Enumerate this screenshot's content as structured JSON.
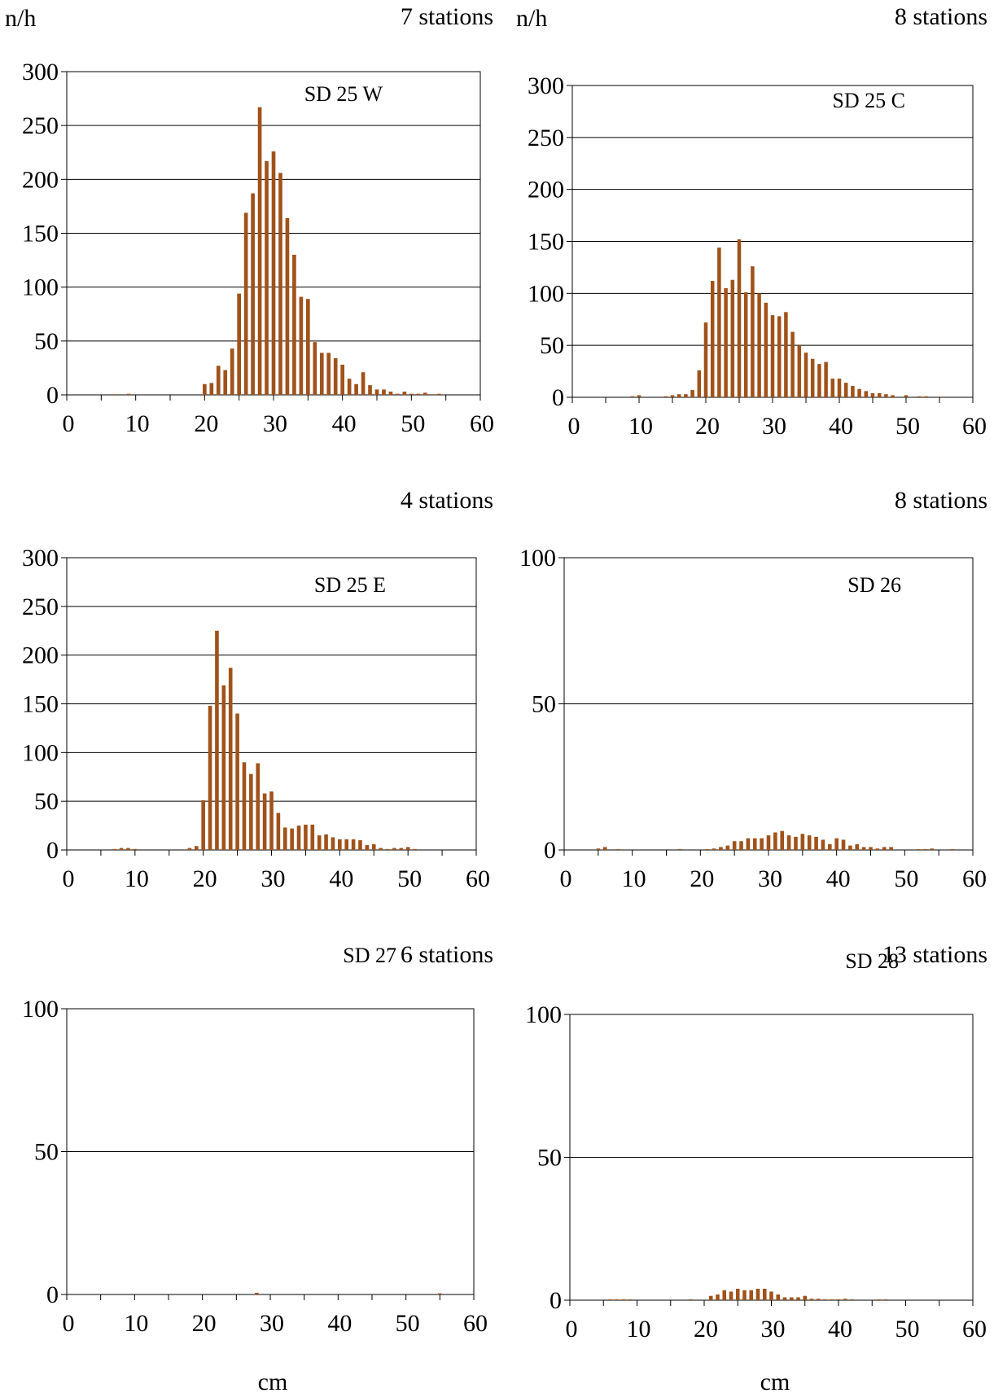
{
  "chart_data": [
    {
      "type": "bar",
      "title": "SD 25 W",
      "stations_label": "7 stations",
      "ylabel": "n/h",
      "xlabel": "",
      "ylim": [
        0,
        300
      ],
      "yticks": [
        0,
        50,
        100,
        150,
        200,
        250,
        300
      ],
      "xlim": [
        0,
        60
      ],
      "xticks": [
        0,
        10,
        20,
        30,
        40,
        50,
        60
      ],
      "grid": true,
      "bar_color": "#A0521A",
      "x": [
        7,
        9,
        20,
        21,
        22,
        23,
        24,
        25,
        26,
        27,
        28,
        29,
        30,
        31,
        32,
        33,
        34,
        35,
        36,
        37,
        38,
        39,
        40,
        41,
        42,
        43,
        44,
        45,
        46,
        47,
        48,
        49,
        50,
        51,
        52,
        53,
        54
      ],
      "values": [
        0.5,
        1,
        10,
        11,
        27,
        23,
        43,
        94,
        169,
        187,
        267,
        217,
        226,
        206,
        164,
        130,
        91,
        89,
        49,
        39,
        39,
        34,
        28,
        15,
        10,
        21,
        9,
        5,
        5,
        3,
        1,
        3,
        1,
        1,
        2,
        0.5,
        1
      ]
    },
    {
      "type": "bar",
      "title": "SD 25 C",
      "stations_label": "8 stations",
      "ylabel": "n/h",
      "xlabel": "",
      "ylim": [
        0,
        300
      ],
      "yticks": [
        0,
        50,
        100,
        150,
        200,
        250,
        300
      ],
      "xlim": [
        0,
        60
      ],
      "xticks": [
        0,
        10,
        20,
        30,
        40,
        50,
        60
      ],
      "grid": true,
      "bar_color": "#A0521A",
      "x": [
        9,
        10,
        14,
        15,
        16,
        17,
        18,
        19,
        20,
        21,
        22,
        23,
        24,
        25,
        26,
        27,
        28,
        29,
        30,
        31,
        32,
        33,
        34,
        35,
        36,
        37,
        38,
        39,
        40,
        41,
        42,
        43,
        44,
        45,
        46,
        47,
        48,
        50,
        52,
        53,
        55
      ],
      "values": [
        1,
        2,
        1,
        2,
        3,
        3,
        7,
        26,
        72,
        112,
        144,
        105,
        113,
        152,
        101,
        126,
        100,
        91,
        79,
        78,
        82,
        63,
        50,
        43,
        37,
        32,
        34,
        18,
        18,
        14,
        11,
        8,
        6,
        4,
        4,
        3,
        2,
        2,
        1,
        1,
        0.5
      ]
    },
    {
      "type": "bar",
      "title": "SD 25 E",
      "stations_label": "4 stations",
      "ylabel": "",
      "xlabel": "",
      "ylim": [
        0,
        300
      ],
      "yticks": [
        0,
        50,
        100,
        150,
        200,
        250,
        300
      ],
      "xlim": [
        0,
        60
      ],
      "xticks": [
        0,
        10,
        20,
        30,
        40,
        50,
        60
      ],
      "grid": true,
      "bar_color": "#A0521A",
      "x": [
        7,
        8,
        9,
        10,
        18,
        19,
        20,
        21,
        22,
        23,
        24,
        25,
        26,
        27,
        28,
        29,
        30,
        31,
        32,
        33,
        34,
        35,
        36,
        37,
        38,
        39,
        40,
        41,
        42,
        43,
        44,
        45,
        46,
        47,
        48,
        49,
        50,
        51
      ],
      "values": [
        1,
        2,
        2,
        1,
        2,
        4,
        51,
        148,
        225,
        169,
        187,
        140,
        90,
        78,
        89,
        58,
        60,
        38,
        23,
        22,
        25,
        26,
        26,
        15,
        16,
        13,
        11,
        11,
        11,
        10,
        5,
        6,
        2,
        1,
        2,
        2,
        3,
        1
      ]
    },
    {
      "type": "bar",
      "title": "SD 26",
      "stations_label": "8 stations",
      "ylabel": "",
      "xlabel": "",
      "ylim": [
        0,
        100
      ],
      "yticks": [
        0,
        50,
        100
      ],
      "xlim": [
        0,
        60
      ],
      "xticks": [
        0,
        10,
        20,
        30,
        40,
        50,
        60
      ],
      "grid": true,
      "bar_color": "#A0521A",
      "x": [
        5,
        6,
        8,
        17,
        21,
        22,
        23,
        24,
        25,
        26,
        27,
        28,
        29,
        30,
        31,
        32,
        33,
        34,
        35,
        36,
        37,
        38,
        39,
        40,
        41,
        42,
        43,
        44,
        45,
        46,
        47,
        48,
        52,
        53,
        54,
        57
      ],
      "values": [
        0.5,
        1,
        0.3,
        0.3,
        0.3,
        0.5,
        1,
        1.5,
        3,
        3,
        4,
        4,
        4,
        5,
        6,
        6.5,
        5,
        4.5,
        5.5,
        5,
        4.5,
        3.5,
        2,
        4,
        3.5,
        1.5,
        2,
        1,
        1,
        0.5,
        1,
        1,
        0.3,
        0.3,
        0.5,
        0.3
      ]
    },
    {
      "type": "bar",
      "title": "SD 27",
      "stations_label": "6 stations",
      "ylabel": "",
      "xlabel": "cm",
      "ylim": [
        0,
        100
      ],
      "yticks": [
        0,
        50,
        100
      ],
      "xlim": [
        0,
        60
      ],
      "xticks": [
        0,
        10,
        20,
        30,
        40,
        50,
        60
      ],
      "grid": true,
      "bar_color": "#A0521A",
      "x": [
        28,
        55
      ],
      "values": [
        0.6,
        0.4
      ]
    },
    {
      "type": "bar",
      "title": "SD 28",
      "stations_label": "13 stations",
      "ylabel": "",
      "xlabel": "cm",
      "ylim": [
        0,
        100
      ],
      "yticks": [
        0,
        50,
        100
      ],
      "xlim": [
        0,
        60
      ],
      "xticks": [
        0,
        10,
        20,
        30,
        40,
        50,
        60
      ],
      "grid": true,
      "bar_color": "#A0521A",
      "x": [
        6,
        7,
        8,
        9,
        18,
        21,
        22,
        23,
        24,
        25,
        26,
        27,
        28,
        29,
        30,
        31,
        32,
        33,
        34,
        35,
        36,
        37,
        38,
        39,
        40,
        41,
        42,
        46,
        47
      ],
      "values": [
        0.3,
        0.3,
        0.3,
        0.3,
        0.3,
        1.5,
        2,
        3.5,
        3,
        4,
        3.5,
        3.5,
        4,
        4,
        3,
        2,
        1,
        1,
        1,
        1.5,
        0.5,
        0.5,
        0.3,
        0.3,
        0.3,
        0.5,
        0.3,
        0.3,
        0.3
      ]
    }
  ]
}
